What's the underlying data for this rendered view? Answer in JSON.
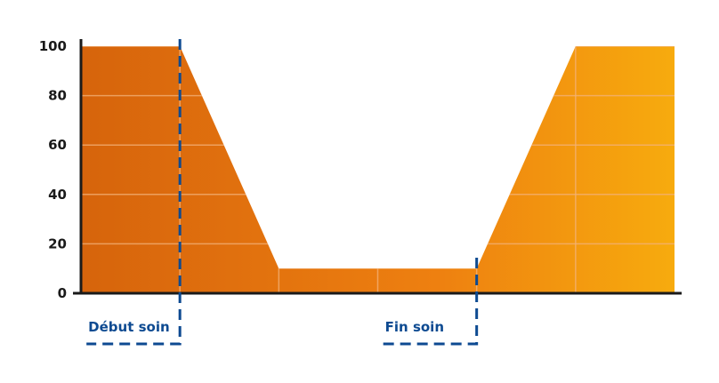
{
  "chart_data": {
    "type": "area",
    "title": "",
    "xlabel": "",
    "ylabel": "",
    "ylim": [
      0,
      100
    ],
    "yticks": [
      0,
      20,
      40,
      60,
      80,
      100
    ],
    "grid": true,
    "series": [
      {
        "x": [
          0,
          1,
          2,
          3,
          4,
          5,
          6
        ],
        "values": [
          100,
          100,
          10,
          10,
          10,
          100,
          100
        ]
      }
    ],
    "xlim": [
      0,
      6
    ],
    "markers": [
      {
        "label": "Début soin",
        "x": 1
      },
      {
        "label": "Fin soin",
        "x": 4
      }
    ],
    "colors": {
      "fill_start": "#d6640c",
      "fill_mid": "#ee8010",
      "fill_end": "#f7ab0e",
      "axis": "#1a1a1a",
      "marker": "#0d4a91",
      "grid": "#f3b27a"
    }
  }
}
